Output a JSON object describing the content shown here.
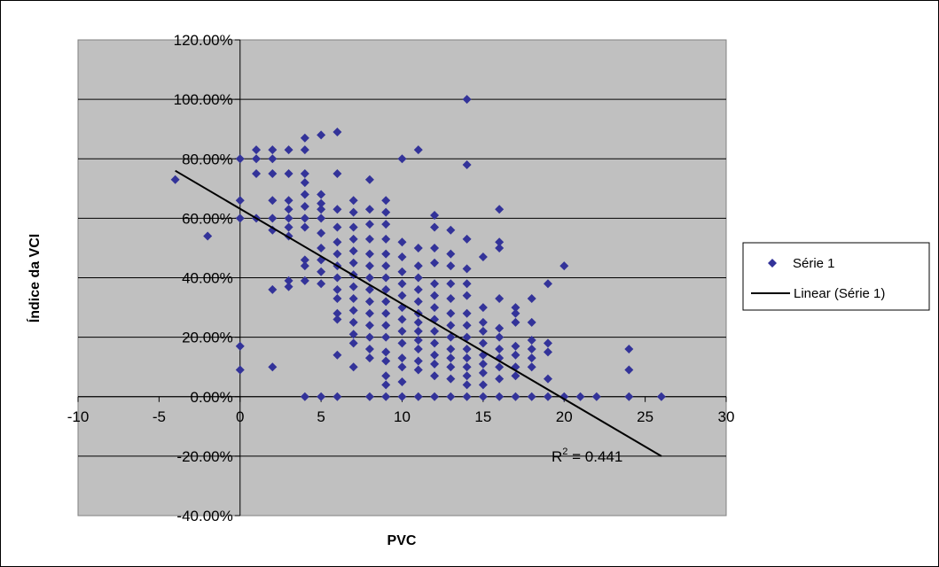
{
  "chart_data": {
    "type": "scatter",
    "xlabel": "PVC",
    "ylabel": "Índice da VCI",
    "xlim": [
      -10,
      30
    ],
    "ylim": [
      -40,
      120
    ],
    "x_ticks": [
      -10,
      -5,
      0,
      5,
      10,
      15,
      20,
      25,
      30
    ],
    "y_ticks": [
      -40,
      -20,
      0,
      20,
      40,
      60,
      80,
      100,
      120
    ],
    "x_tick_labels": [
      "-10",
      "-5",
      "0",
      "5",
      "10",
      "15",
      "20",
      "25",
      "30"
    ],
    "y_tick_labels": [
      "-40.00%",
      "-20.00%",
      "0.00%",
      "20.00%",
      "40.00%",
      "60.00%",
      "80.00%",
      "100.00%",
      "120.00%"
    ],
    "grid": "horizontal",
    "plot_background": "#c0c0c0",
    "marker_color": "#333399",
    "trendline_color": "#000000",
    "legend_position": "right",
    "legend": [
      "Série 1",
      "Linear (Série 1)"
    ],
    "annotation": {
      "text": "R",
      "superscript": "2",
      "suffix": " = 0.441"
    },
    "series": [
      {
        "name": "Série 1",
        "points": [
          [
            -4,
            73
          ],
          [
            -2,
            54
          ],
          [
            0,
            80
          ],
          [
            0,
            66
          ],
          [
            0,
            60
          ],
          [
            0,
            17
          ],
          [
            0,
            9
          ],
          [
            1,
            83
          ],
          [
            1,
            80
          ],
          [
            1,
            75
          ],
          [
            1,
            60
          ],
          [
            2,
            83
          ],
          [
            2,
            80
          ],
          [
            2,
            75
          ],
          [
            2,
            66
          ],
          [
            2,
            60
          ],
          [
            2,
            56
          ],
          [
            2,
            36
          ],
          [
            2,
            10
          ],
          [
            3,
            83
          ],
          [
            3,
            75
          ],
          [
            3,
            66
          ],
          [
            3,
            63
          ],
          [
            3,
            60
          ],
          [
            3,
            57
          ],
          [
            3,
            54
          ],
          [
            3,
            39
          ],
          [
            3,
            37
          ],
          [
            4,
            87
          ],
          [
            4,
            83
          ],
          [
            4,
            75
          ],
          [
            4,
            72
          ],
          [
            4,
            68
          ],
          [
            4,
            64
          ],
          [
            4,
            60
          ],
          [
            4,
            57
          ],
          [
            4,
            46
          ],
          [
            4,
            44
          ],
          [
            4,
            39
          ],
          [
            4,
            0
          ],
          [
            5,
            88
          ],
          [
            5,
            68
          ],
          [
            5,
            65
          ],
          [
            5,
            63
          ],
          [
            5,
            60
          ],
          [
            5,
            55
          ],
          [
            5,
            50
          ],
          [
            5,
            46
          ],
          [
            5,
            42
          ],
          [
            5,
            38
          ],
          [
            5,
            0
          ],
          [
            6,
            89
          ],
          [
            6,
            75
          ],
          [
            6,
            63
          ],
          [
            6,
            57
          ],
          [
            6,
            52
          ],
          [
            6,
            48
          ],
          [
            6,
            44
          ],
          [
            6,
            40
          ],
          [
            6,
            36
          ],
          [
            6,
            33
          ],
          [
            6,
            28
          ],
          [
            6,
            26
          ],
          [
            6,
            14
          ],
          [
            6,
            0
          ],
          [
            7,
            66
          ],
          [
            7,
            62
          ],
          [
            7,
            57
          ],
          [
            7,
            53
          ],
          [
            7,
            49
          ],
          [
            7,
            45
          ],
          [
            7,
            41
          ],
          [
            7,
            37
          ],
          [
            7,
            33
          ],
          [
            7,
            29
          ],
          [
            7,
            25
          ],
          [
            7,
            21
          ],
          [
            7,
            18
          ],
          [
            7,
            10
          ],
          [
            8,
            73
          ],
          [
            8,
            63
          ],
          [
            8,
            58
          ],
          [
            8,
            53
          ],
          [
            8,
            48
          ],
          [
            8,
            44
          ],
          [
            8,
            40
          ],
          [
            8,
            36
          ],
          [
            8,
            32
          ],
          [
            8,
            28
          ],
          [
            8,
            24
          ],
          [
            8,
            20
          ],
          [
            8,
            16
          ],
          [
            8,
            13
          ],
          [
            8,
            0
          ],
          [
            9,
            66
          ],
          [
            9,
            62
          ],
          [
            9,
            58
          ],
          [
            9,
            53
          ],
          [
            9,
            48
          ],
          [
            9,
            44
          ],
          [
            9,
            40
          ],
          [
            9,
            36
          ],
          [
            9,
            32
          ],
          [
            9,
            28
          ],
          [
            9,
            24
          ],
          [
            9,
            20
          ],
          [
            9,
            15
          ],
          [
            9,
            12
          ],
          [
            9,
            7
          ],
          [
            9,
            4
          ],
          [
            9,
            0
          ],
          [
            10,
            80
          ],
          [
            10,
            52
          ],
          [
            10,
            47
          ],
          [
            10,
            42
          ],
          [
            10,
            38
          ],
          [
            10,
            34
          ],
          [
            10,
            30
          ],
          [
            10,
            26
          ],
          [
            10,
            22
          ],
          [
            10,
            18
          ],
          [
            10,
            13
          ],
          [
            10,
            10
          ],
          [
            10,
            5
          ],
          [
            10,
            0
          ],
          [
            11,
            83
          ],
          [
            11,
            50
          ],
          [
            11,
            44
          ],
          [
            11,
            40
          ],
          [
            11,
            36
          ],
          [
            11,
            32
          ],
          [
            11,
            28
          ],
          [
            11,
            25
          ],
          [
            11,
            22
          ],
          [
            11,
            19
          ],
          [
            11,
            16
          ],
          [
            11,
            12
          ],
          [
            11,
            9
          ],
          [
            11,
            0
          ],
          [
            12,
            61
          ],
          [
            12,
            57
          ],
          [
            12,
            50
          ],
          [
            12,
            45
          ],
          [
            12,
            38
          ],
          [
            12,
            34
          ],
          [
            12,
            30
          ],
          [
            12,
            26
          ],
          [
            12,
            22
          ],
          [
            12,
            18
          ],
          [
            12,
            14
          ],
          [
            12,
            11
          ],
          [
            12,
            7
          ],
          [
            12,
            0
          ],
          [
            13,
            56
          ],
          [
            13,
            48
          ],
          [
            13,
            44
          ],
          [
            13,
            38
          ],
          [
            13,
            33
          ],
          [
            13,
            28
          ],
          [
            13,
            24
          ],
          [
            13,
            20
          ],
          [
            13,
            16
          ],
          [
            13,
            13
          ],
          [
            13,
            10
          ],
          [
            13,
            6
          ],
          [
            13,
            0
          ],
          [
            14,
            100
          ],
          [
            14,
            78
          ],
          [
            14,
            53
          ],
          [
            14,
            43
          ],
          [
            14,
            38
          ],
          [
            14,
            34
          ],
          [
            14,
            28
          ],
          [
            14,
            24
          ],
          [
            14,
            20
          ],
          [
            14,
            16
          ],
          [
            14,
            13
          ],
          [
            14,
            10
          ],
          [
            14,
            7
          ],
          [
            14,
            4
          ],
          [
            14,
            0
          ],
          [
            15,
            47
          ],
          [
            15,
            30
          ],
          [
            15,
            25
          ],
          [
            15,
            22
          ],
          [
            15,
            18
          ],
          [
            15,
            14
          ],
          [
            15,
            11
          ],
          [
            15,
            8
          ],
          [
            15,
            4
          ],
          [
            15,
            0
          ],
          [
            16,
            63
          ],
          [
            16,
            52
          ],
          [
            16,
            50
          ],
          [
            16,
            33
          ],
          [
            16,
            23
          ],
          [
            16,
            20
          ],
          [
            16,
            16
          ],
          [
            16,
            13
          ],
          [
            16,
            10
          ],
          [
            16,
            6
          ],
          [
            16,
            0
          ],
          [
            17,
            30
          ],
          [
            17,
            28
          ],
          [
            17,
            25
          ],
          [
            17,
            17
          ],
          [
            17,
            14
          ],
          [
            17,
            10
          ],
          [
            17,
            7
          ],
          [
            17,
            0
          ],
          [
            18,
            33
          ],
          [
            18,
            25
          ],
          [
            18,
            19
          ],
          [
            18,
            16
          ],
          [
            18,
            13
          ],
          [
            18,
            10
          ],
          [
            18,
            0
          ],
          [
            19,
            38
          ],
          [
            19,
            18
          ],
          [
            19,
            15
          ],
          [
            19,
            6
          ],
          [
            19,
            0
          ],
          [
            20,
            44
          ],
          [
            20,
            0
          ],
          [
            21,
            0
          ],
          [
            22,
            0
          ],
          [
            24,
            16
          ],
          [
            24,
            9
          ],
          [
            24,
            0
          ],
          [
            26,
            0
          ]
        ]
      }
    ],
    "trendline": {
      "name": "Linear (Série 1)",
      "x": [
        -4,
        26
      ],
      "y": [
        76,
        -20
      ]
    }
  }
}
